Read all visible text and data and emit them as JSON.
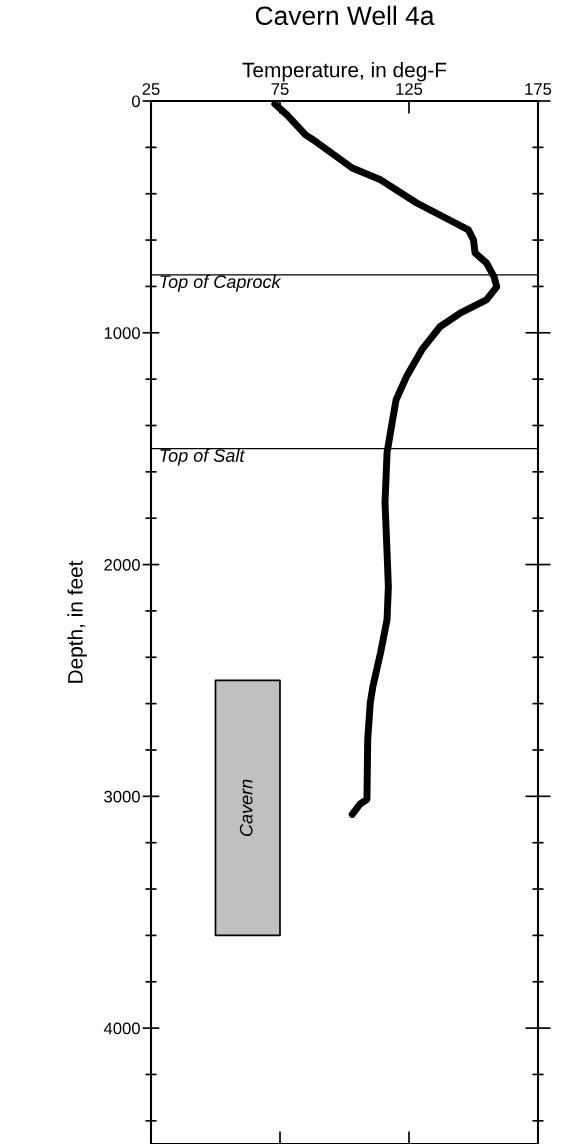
{
  "chart_data": {
    "type": "line",
    "title": "Cavern Well 4a",
    "xlabel": "Temperature, in deg-F",
    "ylabel": "Depth, in feet",
    "xlim": [
      25,
      175
    ],
    "xticks": [
      25,
      75,
      125,
      175
    ],
    "ylim": [
      4500,
      0
    ],
    "yticks": [
      0,
      {
        "value": 200,
        "label": null
      },
      {
        "value": 400,
        "label": null
      },
      {
        "value": 600,
        "label": null
      },
      {
        "value": 800,
        "label": null
      },
      1000,
      {
        "value": 1200,
        "label": null
      },
      {
        "value": 1400,
        "label": null
      },
      {
        "value": 1600,
        "label": null
      },
      {
        "value": 1800,
        "label": null
      },
      2000,
      {
        "value": 2200,
        "label": null
      },
      {
        "value": 2400,
        "label": null
      },
      {
        "value": 2600,
        "label": null
      },
      {
        "value": 2800,
        "label": null
      },
      3000,
      {
        "value": 3200,
        "label": null
      },
      {
        "value": 3400,
        "label": null
      },
      {
        "value": 3600,
        "label": null
      },
      {
        "value": 3800,
        "label": null
      },
      4000,
      {
        "value": 4200,
        "label": null
      },
      {
        "value": 4400,
        "label": null
      }
    ],
    "grid": false,
    "legend": false,
    "marker": "none",
    "line_style": "solid",
    "series": [
      {
        "type": "area",
        "color": "#c0c0c0",
        "x": [
          50,
          75
        ],
        "values": [
          null,
          null
        ],
        "lower": [
          2500,
          2500
        ],
        "upper": [
          3600,
          3600
        ]
      },
      {
        "color": "#000000",
        "x": [
          73,
          77.7,
          85,
          88,
          103,
          114,
          128,
          142,
          148,
          150,
          150.6,
          155,
          158,
          159,
          155,
          145,
          137,
          130,
          124,
          120,
          118,
          116.5,
          115.7,
          116.5,
          117,
          116.5,
          114,
          111,
          110,
          109,
          108.7,
          106,
          103
        ],
        "values": [
          13,
          60,
          147,
          168,
          289,
          340,
          440,
          521,
          556,
          599,
          655,
          698,
          759,
          802,
          858,
          914,
          974,
          1073,
          1190,
          1289,
          1418,
          1517,
          1733,
          1948,
          2095,
          2237,
          2379,
          2526,
          2595,
          2754,
          3013,
          3034,
          3078
        ]
      }
    ],
    "ref_lines": [
      {
        "axis": "y",
        "value": 750,
        "label": "Top of Caprock",
        "color": "#000000"
      },
      {
        "axis": "y",
        "value": 1500,
        "label": "Top of Salt",
        "color": "#000000"
      }
    ],
    "annotations": [
      "Cavern"
    ]
  }
}
